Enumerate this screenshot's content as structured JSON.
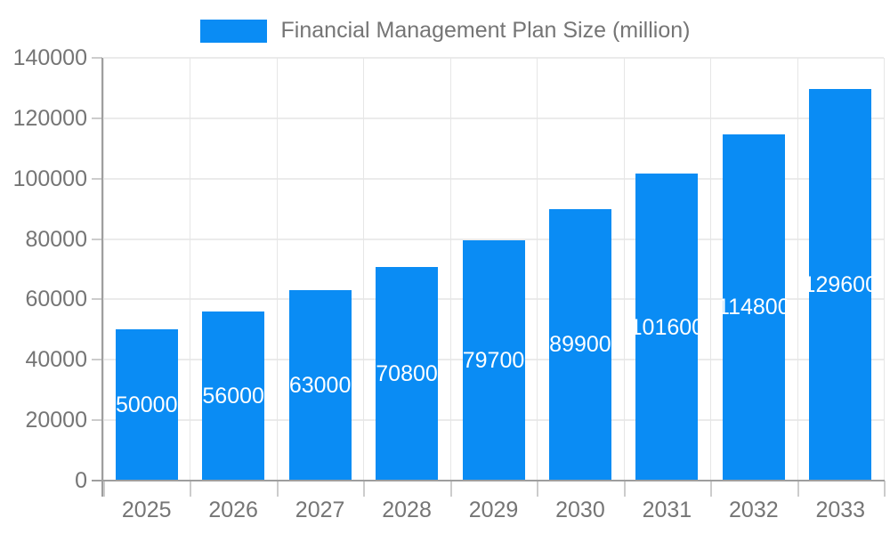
{
  "legend": {
    "label": "Financial Management Plan Size (million)"
  },
  "colors": {
    "bar": "#0a8cf4",
    "axis": "#9e9e9e",
    "grid_h": "#ebebeb",
    "grid_v": "#e6e6e6",
    "tick": "#cccccc",
    "tick_label_text": "#757575",
    "bar_label_text": "#ffffff",
    "background": "#ffffff"
  },
  "chart_data": {
    "type": "bar",
    "title": "Financial Management Plan Size (million)",
    "categories": [
      "2025",
      "2026",
      "2027",
      "2028",
      "2029",
      "2030",
      "2031",
      "2032",
      "2033"
    ],
    "values": [
      50000,
      56000,
      63000,
      70800,
      79700,
      89900,
      101600,
      114800,
      129600
    ],
    "xlabel": "",
    "ylabel": "",
    "ylim": [
      0,
      140000
    ],
    "ytick_step": 20000,
    "yticks": [
      0,
      20000,
      40000,
      60000,
      80000,
      100000,
      120000,
      140000
    ],
    "grid": true,
    "legend_position": "top",
    "bar_labels": "inside-center"
  }
}
